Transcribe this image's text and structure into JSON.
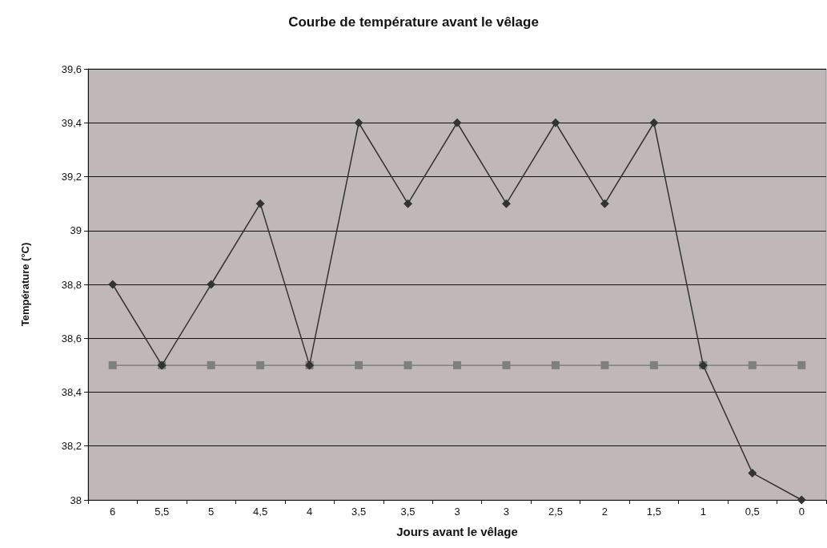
{
  "chart_data": {
    "type": "line",
    "title": "Courbe de température avant le vêlage",
    "xlabel": "Jours avant le vêlage",
    "ylabel": "Température (°C)",
    "categories": [
      "6",
      "5,5",
      "5",
      "4,5",
      "4",
      "3,5",
      "3,5",
      "3",
      "3",
      "2,5",
      "2",
      "1,5",
      "1",
      "0,5",
      "0"
    ],
    "series": [
      {
        "color": "#333333",
        "marker": "diamond",
        "values": [
          38.8,
          38.5,
          38.8,
          39.1,
          38.5,
          39.4,
          39.1,
          39.4,
          39.1,
          39.4,
          39.1,
          39.4,
          38.5,
          38.1,
          38.0
        ]
      },
      {
        "color": "#7f7f7f",
        "marker": "square",
        "values": [
          38.5,
          38.5,
          38.5,
          38.5,
          38.5,
          38.5,
          38.5,
          38.5,
          38.5,
          38.5,
          38.5,
          38.5,
          38.5,
          38.5,
          38.5
        ]
      }
    ],
    "ylim": [
      38,
      39.6
    ],
    "yticks": [
      38,
      {
        "value": 38.2,
        "label": "38,2"
      },
      {
        "value": 38.4,
        "label": "38,4"
      },
      {
        "value": 38.6,
        "label": "38,6"
      },
      {
        "value": 38.8,
        "label": "38,8"
      },
      39,
      {
        "value": 39.2,
        "label": "39,2"
      },
      {
        "value": 39.4,
        "label": "39,4"
      },
      {
        "value": 39.6,
        "label": "39,6"
      }
    ],
    "grid": "y",
    "line_style": "solid"
  }
}
